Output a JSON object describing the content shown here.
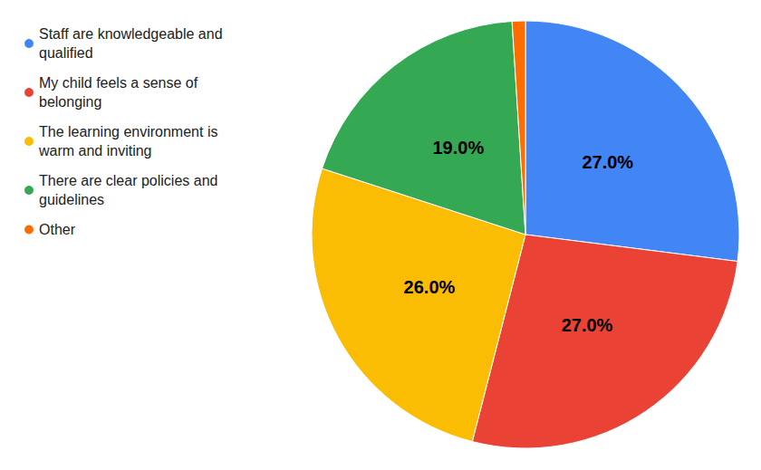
{
  "chart_data": {
    "type": "pie",
    "categories": [
      "Staff are knowledgeable and qualified",
      "My child feels a sense of belonging",
      "The learning environment is warm and inviting",
      "There are clear policies and guidelines",
      "Other"
    ],
    "values": [
      27,
      27,
      26,
      19,
      1
    ],
    "value_labels": [
      "27.0%",
      "27.0%",
      "26.0%",
      "19.0%",
      null
    ],
    "colors": [
      "#4285f4",
      "#ea4335",
      "#fbbc04",
      "#34a853",
      "#ff6d01"
    ],
    "data_labels": true,
    "legend": "top-left"
  }
}
